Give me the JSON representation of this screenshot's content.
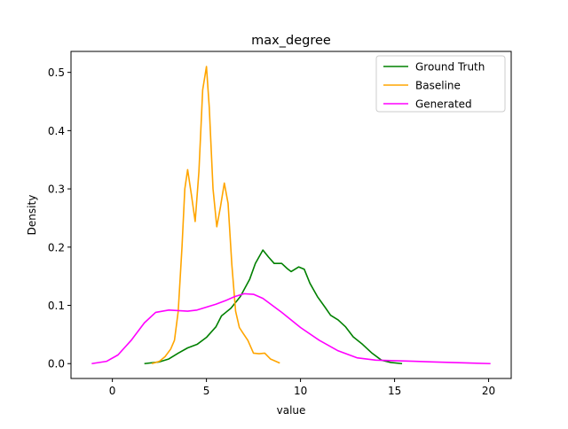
{
  "chart_data": {
    "type": "line",
    "title": "max_degree",
    "xlabel": "value",
    "ylabel": "Density",
    "xlim": [
      -2.2,
      21.2
    ],
    "ylim": [
      -0.0255,
      0.536
    ],
    "xticks": [
      0,
      5,
      10,
      15,
      20
    ],
    "yticks": [
      0.0,
      0.1,
      0.2,
      0.3,
      0.4,
      0.5
    ],
    "xtick_labels": [
      "0",
      "5",
      "10",
      "15",
      "20"
    ],
    "ytick_labels": [
      "0.0",
      "0.1",
      "0.2",
      "0.3",
      "0.4",
      "0.5"
    ],
    "grid": false,
    "legend": "top-right",
    "series": [
      {
        "name": "Ground Truth",
        "color": "#008000",
        "points": [
          [
            1.7,
            0.0
          ],
          [
            2.5,
            0.003
          ],
          [
            3.0,
            0.008
          ],
          [
            3.5,
            0.018
          ],
          [
            4.0,
            0.027
          ],
          [
            4.5,
            0.033
          ],
          [
            5.0,
            0.045
          ],
          [
            5.5,
            0.063
          ],
          [
            5.8,
            0.082
          ],
          [
            6.3,
            0.095
          ],
          [
            6.8,
            0.115
          ],
          [
            7.3,
            0.145
          ],
          [
            7.6,
            0.172
          ],
          [
            8.0,
            0.195
          ],
          [
            8.3,
            0.183
          ],
          [
            8.6,
            0.172
          ],
          [
            9.0,
            0.172
          ],
          [
            9.3,
            0.163
          ],
          [
            9.5,
            0.158
          ],
          [
            9.9,
            0.166
          ],
          [
            10.2,
            0.162
          ],
          [
            10.5,
            0.138
          ],
          [
            10.9,
            0.115
          ],
          [
            11.3,
            0.097
          ],
          [
            11.6,
            0.083
          ],
          [
            12.0,
            0.075
          ],
          [
            12.4,
            0.063
          ],
          [
            12.8,
            0.046
          ],
          [
            13.3,
            0.033
          ],
          [
            13.8,
            0.018
          ],
          [
            14.3,
            0.006
          ],
          [
            14.8,
            0.002
          ],
          [
            15.4,
            0.0
          ]
        ]
      },
      {
        "name": "Baseline",
        "color": "#ffa500",
        "points": [
          [
            2.1,
            0.0
          ],
          [
            2.5,
            0.004
          ],
          [
            2.8,
            0.012
          ],
          [
            3.1,
            0.025
          ],
          [
            3.3,
            0.04
          ],
          [
            3.5,
            0.09
          ],
          [
            3.7,
            0.2
          ],
          [
            3.85,
            0.3
          ],
          [
            4.0,
            0.333
          ],
          [
            4.2,
            0.29
          ],
          [
            4.4,
            0.244
          ],
          [
            4.6,
            0.33
          ],
          [
            4.8,
            0.47
          ],
          [
            5.0,
            0.51
          ],
          [
            5.15,
            0.44
          ],
          [
            5.35,
            0.3
          ],
          [
            5.55,
            0.235
          ],
          [
            5.75,
            0.27
          ],
          [
            5.95,
            0.31
          ],
          [
            6.15,
            0.275
          ],
          [
            6.35,
            0.17
          ],
          [
            6.55,
            0.09
          ],
          [
            6.75,
            0.062
          ],
          [
            6.95,
            0.052
          ],
          [
            7.2,
            0.04
          ],
          [
            7.5,
            0.018
          ],
          [
            7.8,
            0.017
          ],
          [
            8.1,
            0.018
          ],
          [
            8.4,
            0.008
          ],
          [
            8.9,
            0.001
          ]
        ]
      },
      {
        "name": "Generated",
        "color": "#ff00ff",
        "points": [
          [
            -1.1,
            0.0
          ],
          [
            -0.3,
            0.004
          ],
          [
            0.3,
            0.015
          ],
          [
            1.0,
            0.04
          ],
          [
            1.7,
            0.07
          ],
          [
            2.3,
            0.088
          ],
          [
            3.0,
            0.092
          ],
          [
            3.5,
            0.091
          ],
          [
            4.0,
            0.09
          ],
          [
            4.5,
            0.092
          ],
          [
            5.0,
            0.097
          ],
          [
            5.5,
            0.102
          ],
          [
            6.0,
            0.108
          ],
          [
            6.5,
            0.115
          ],
          [
            7.0,
            0.12
          ],
          [
            7.5,
            0.119
          ],
          [
            8.0,
            0.112
          ],
          [
            8.5,
            0.1
          ],
          [
            9.0,
            0.088
          ],
          [
            10.0,
            0.062
          ],
          [
            11.0,
            0.04
          ],
          [
            12.0,
            0.022
          ],
          [
            13.0,
            0.01
          ],
          [
            14.0,
            0.006
          ],
          [
            15.0,
            0.005
          ],
          [
            16.0,
            0.004
          ],
          [
            17.0,
            0.003
          ],
          [
            18.0,
            0.002
          ],
          [
            19.0,
            0.001
          ],
          [
            20.1,
            0.0
          ]
        ]
      }
    ]
  }
}
